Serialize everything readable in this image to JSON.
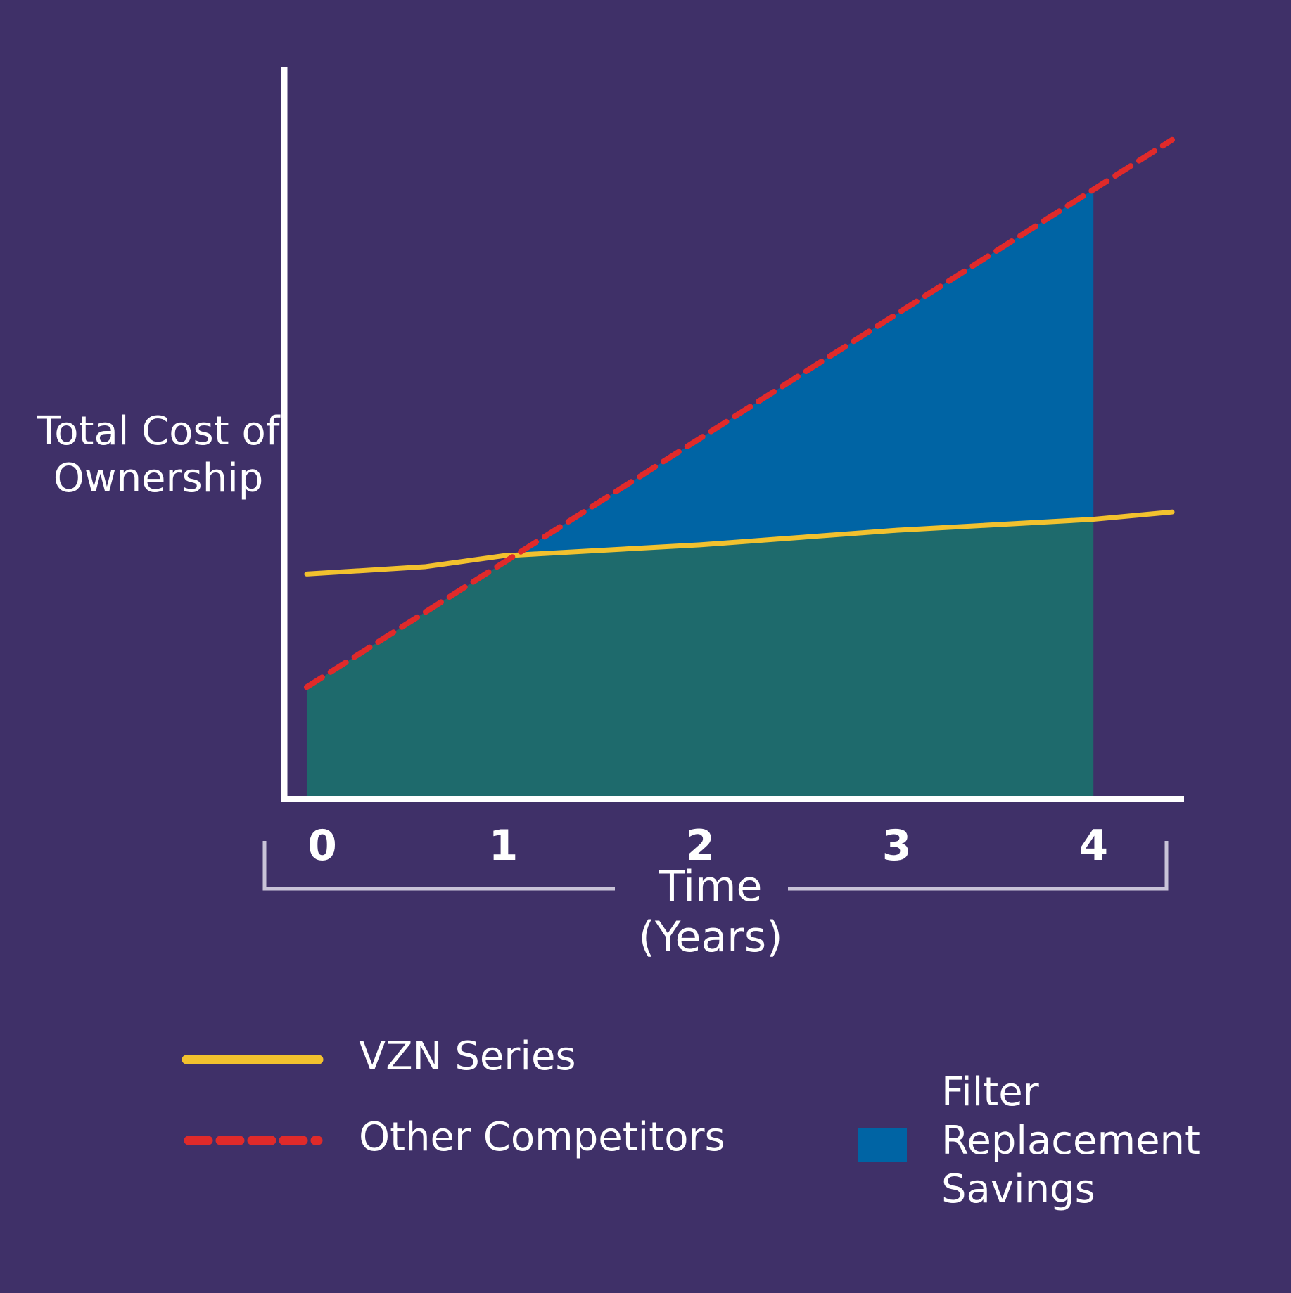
{
  "chart_data": {
    "type": "line",
    "title": "",
    "xlabel": "Time",
    "xlabel_sub": "(Years)",
    "ylabel": "Total Cost of Ownership",
    "x_ticks": [
      "0",
      "1",
      "2",
      "3",
      "4"
    ],
    "xlim": [
      -0.1,
      4.45
    ],
    "ylim": [
      0,
      100
    ],
    "fill_end_x": 4.0,
    "series": [
      {
        "name": "VZN Series",
        "style": "solid",
        "color": "#f2c12e",
        "x": [
          0,
          0.6,
          1.0,
          2.0,
          3.0,
          4.0,
          4.4
        ],
        "y": [
          30.5,
          31.5,
          33.0,
          34.5,
          36.5,
          38.0,
          39.0
        ]
      },
      {
        "name": "Other Competitors",
        "style": "dashed",
        "color": "#e02a2a",
        "x": [
          0,
          4.4
        ],
        "y": [
          15,
          90
        ]
      }
    ],
    "area": {
      "name": "Filter Replacement Savings",
      "color": "#0064a4"
    },
    "base_area_color": "#1e6a6c",
    "legend": [
      {
        "label": "VZN Series",
        "style": "solid",
        "color": "#f2c12e"
      },
      {
        "label": "Other Competitors",
        "style": "dashed",
        "color": "#e02a2a"
      },
      {
        "label": "Filter Replacement Savings",
        "style": "swatch",
        "color": "#0064a4"
      }
    ],
    "legend_position": "bottom"
  }
}
